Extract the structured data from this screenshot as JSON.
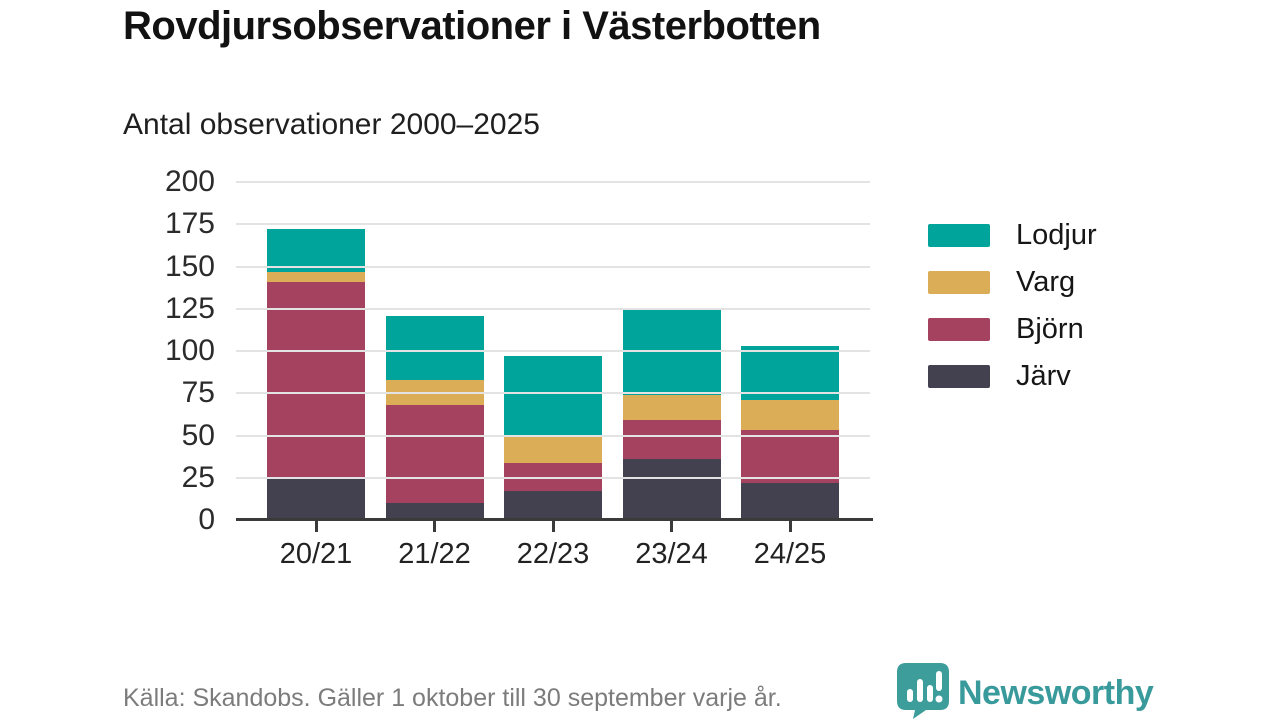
{
  "header": {
    "title": "Rovdjursobservationer i Västerbotten",
    "subtitle": "Antal observationer 2000–2025"
  },
  "footer": {
    "source": "Källa: Skandobs. Gäller 1 oktober till 30 september varje år.",
    "brand": "Newsworthy"
  },
  "colors": {
    "background": "#FFFFFF",
    "axis": "#3A3A3A",
    "gridline": "#E3E3E3",
    "tick_label": "#2B2B2B",
    "footer_text": "#7C7C7C",
    "brand_teal": "#3C9D9B"
  },
  "chart_data": {
    "type": "bar",
    "stacked": true,
    "title": "Rovdjursobservationer i Västerbotten",
    "subtitle": "Antal observationer 2000–2025",
    "categories": [
      "20/21",
      "21/22",
      "22/23",
      "23/24",
      "24/25"
    ],
    "series": [
      {
        "name": "Järv",
        "color": "#434050",
        "values": [
          25,
          10,
          17,
          36,
          22
        ]
      },
      {
        "name": "Björn",
        "color": "#A5425F",
        "values": [
          116,
          58,
          17,
          23,
          31
        ]
      },
      {
        "name": "Varg",
        "color": "#DBAD57",
        "values": [
          6,
          15,
          15,
          15,
          18
        ]
      },
      {
        "name": "Lodjur",
        "color": "#00A49A",
        "values": [
          25,
          38,
          48,
          51,
          32
        ]
      }
    ],
    "totals": [
      172,
      121,
      97,
      125,
      103
    ],
    "legend_order": [
      "Lodjur",
      "Varg",
      "Björn",
      "Järv"
    ],
    "legend_position": "right",
    "xlabel": "",
    "ylabel": "",
    "ylim": [
      0,
      200
    ],
    "yticks": [
      0,
      25,
      50,
      75,
      100,
      125,
      150,
      175,
      200
    ],
    "grid": "horizontal"
  }
}
